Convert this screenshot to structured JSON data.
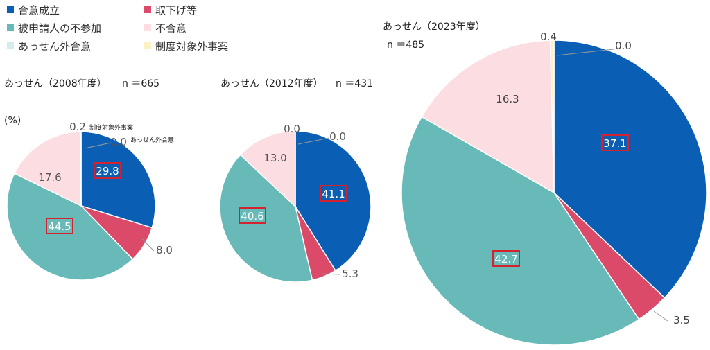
{
  "colors": {
    "agreement": "#0a5fb4",
    "withdrawn": "#dc4a6a",
    "respondent_absent": "#68bab8",
    "disagreement": "#fbdde2",
    "non_assen": "#d4ecef",
    "out_of_scope": "#fbf1c2",
    "highlight_box": "#d4222f",
    "leader": "#999999"
  },
  "legend": [
    {
      "key": "agreement",
      "label": "合意成立"
    },
    {
      "key": "withdrawn",
      "label": "取下げ等"
    },
    {
      "key": "respondent_absent",
      "label": "被申請人の不参加"
    },
    {
      "key": "disagreement",
      "label": "不合意"
    },
    {
      "key": "non_assen",
      "label": "あっせん外合意"
    },
    {
      "key": "out_of_scope",
      "label": "制度対象外事案"
    }
  ],
  "unit_label": "(%)",
  "chart_data": [
    {
      "type": "pie",
      "title": "あっせん（2008年度）",
      "n_label": "n ＝665",
      "slices": [
        {
          "key": "agreement",
          "label": "合意成立",
          "value": 29.8
        },
        {
          "key": "withdrawn",
          "label": "取下げ等",
          "value": 8.0
        },
        {
          "key": "respondent_absent",
          "label": "被申請人の不参加",
          "value": 44.5
        },
        {
          "key": "disagreement",
          "label": "不合意",
          "value": 17.6
        },
        {
          "key": "out_of_scope",
          "label": "制度対象外事案",
          "value": 0.2,
          "callout": "制度対象外事案"
        },
        {
          "key": "non_assen",
          "label": "あっせん外合意",
          "value": 0.0,
          "callout": "あっせん外合意"
        }
      ],
      "highlighted": [
        "agreement",
        "respondent_absent"
      ]
    },
    {
      "type": "pie",
      "title": "あっせん（2012年度）",
      "n_label": "n ＝431",
      "slices": [
        {
          "key": "agreement",
          "label": "合意成立",
          "value": 41.1
        },
        {
          "key": "withdrawn",
          "label": "取下げ等",
          "value": 5.3
        },
        {
          "key": "respondent_absent",
          "label": "被申請人の不参加",
          "value": 40.6
        },
        {
          "key": "disagreement",
          "label": "不合意",
          "value": 13.0
        },
        {
          "key": "out_of_scope",
          "label": "制度対象外事案",
          "value": 0.0
        },
        {
          "key": "non_assen",
          "label": "あっせん外合意",
          "value": 0.0
        }
      ],
      "highlighted": [
        "agreement",
        "respondent_absent"
      ]
    },
    {
      "type": "pie",
      "title": "あっせん（2023年度）",
      "n_label": "n ＝485",
      "slices": [
        {
          "key": "agreement",
          "label": "合意成立",
          "value": 37.1
        },
        {
          "key": "withdrawn",
          "label": "取下げ等",
          "value": 3.5
        },
        {
          "key": "respondent_absent",
          "label": "被申請人の不参加",
          "value": 42.7
        },
        {
          "key": "disagreement",
          "label": "不合意",
          "value": 16.3
        },
        {
          "key": "out_of_scope",
          "label": "制度対象外事案",
          "value": 0.4
        },
        {
          "key": "non_assen",
          "label": "あっせん外合意",
          "value": 0.0
        }
      ],
      "highlighted": [
        "agreement",
        "respondent_absent"
      ]
    }
  ]
}
